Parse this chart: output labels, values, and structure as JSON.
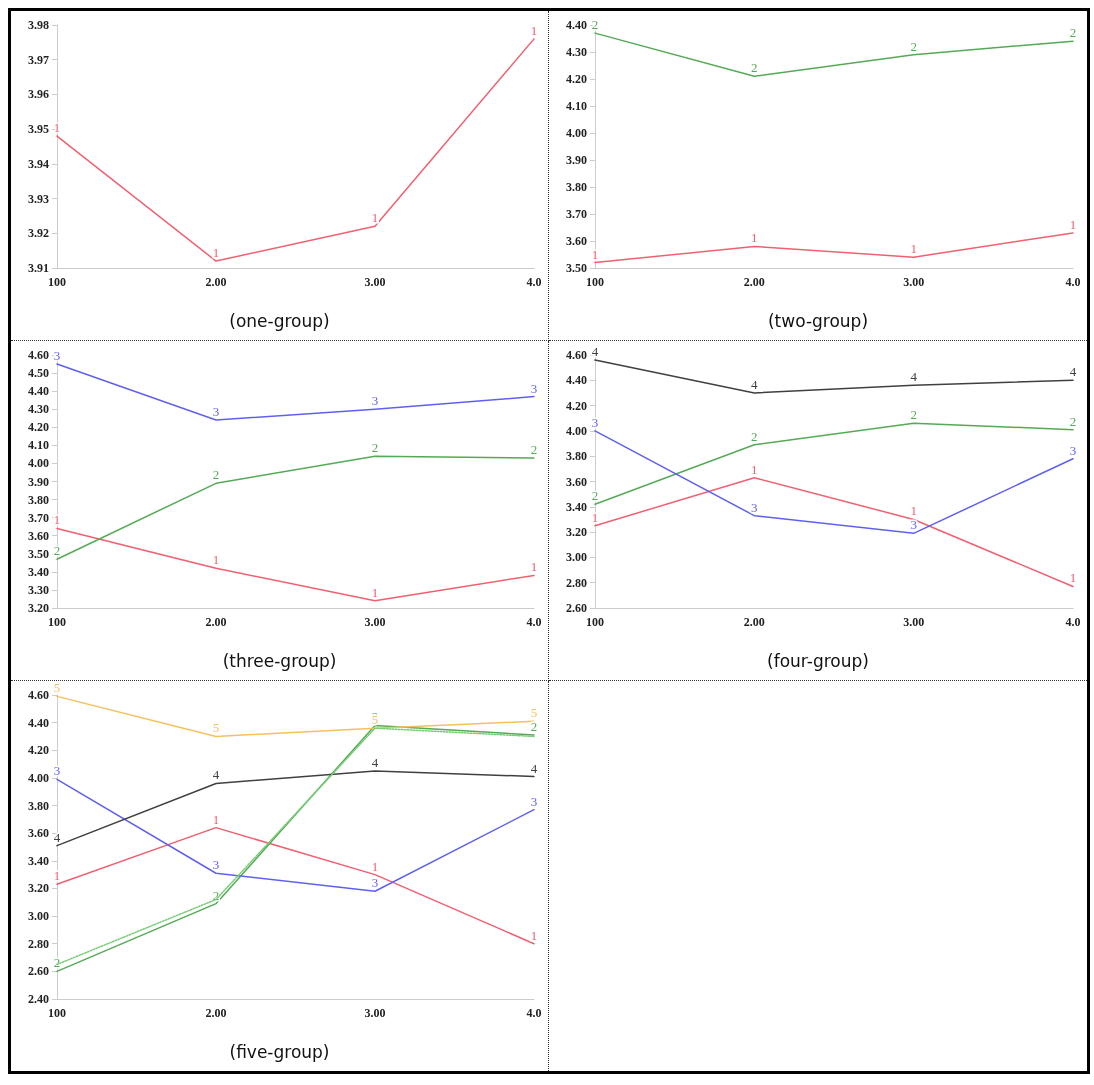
{
  "chart_data": [
    {
      "type": "line",
      "title": "(one-group)",
      "categories": [
        "100",
        "2.00",
        "3.00",
        "4.0"
      ],
      "ylim": [
        3.91,
        3.98
      ],
      "yticks": [
        3.91,
        3.92,
        3.93,
        3.94,
        3.95,
        3.96,
        3.97,
        3.98
      ],
      "series": [
        {
          "name": "1",
          "color": "#f06070",
          "values": [
            3.948,
            3.912,
            3.922,
            3.976
          ]
        }
      ]
    },
    {
      "type": "line",
      "title": "(two-group)",
      "categories": [
        "100",
        "2.00",
        "3.00",
        "4.0"
      ],
      "ylim": [
        3.5,
        4.4
      ],
      "yticks": [
        {
          "value": 3.5,
          "label": "3.50"
        },
        {
          "value": 3.6,
          "label": "3.60"
        },
        {
          "value": 3.7,
          "label": "3.70"
        },
        {
          "value": 3.8,
          "label": "3.80"
        },
        {
          "value": 3.9,
          "label": "3.90"
        },
        {
          "value": 4,
          "label": "4.00"
        },
        {
          "value": 4.1,
          "label": "4.10"
        },
        {
          "value": 4.2,
          "label": "4.20"
        },
        {
          "value": 4.3,
          "label": "4.30"
        },
        {
          "value": 4.4,
          "label": "4.40"
        }
      ],
      "series": [
        {
          "name": "1",
          "color": "#f06070",
          "values": [
            3.52,
            3.58,
            3.54,
            3.63
          ]
        },
        {
          "name": "2",
          "color": "#55aa55",
          "values": [
            4.37,
            4.21,
            4.29,
            4.34
          ]
        }
      ]
    },
    {
      "type": "line",
      "title": "(three-group)",
      "categories": [
        "100",
        "2.00",
        "3.00",
        "4.0"
      ],
      "ylim": [
        3.2,
        4.6
      ],
      "yticks": [
        {
          "value": 3.2,
          "label": "3.20"
        },
        {
          "value": 3.3,
          "label": "3.30"
        },
        {
          "value": 3.4,
          "label": "3.40"
        },
        {
          "value": 3.5,
          "label": "3.50"
        },
        {
          "value": 3.6,
          "label": "3.60"
        },
        {
          "value": 3.7,
          "label": "3.70"
        },
        {
          "value": 3.8,
          "label": "3.80"
        },
        {
          "value": 3.9,
          "label": "3.90"
        },
        {
          "value": 4,
          "label": "4.00"
        },
        {
          "value": 4.1,
          "label": "4.10"
        },
        {
          "value": 4.2,
          "label": "4.20"
        },
        {
          "value": 4.3,
          "label": "4.30"
        },
        {
          "value": 4.4,
          "label": "4.40"
        },
        {
          "value": 4.5,
          "label": "4.50"
        },
        {
          "value": 4.6,
          "label": "4.60"
        }
      ],
      "series": [
        {
          "name": "1",
          "color": "#f06070",
          "values": [
            3.64,
            3.42,
            3.24,
            3.38
          ]
        },
        {
          "name": "2",
          "color": "#55aa55",
          "values": [
            3.47,
            3.89,
            4.04,
            4.03
          ]
        },
        {
          "name": "3",
          "color": "#6060f0",
          "values": [
            4.55,
            4.24,
            4.3,
            4.37
          ]
        }
      ]
    },
    {
      "type": "line",
      "title": "(four-group)",
      "categories": [
        "100",
        "2.00",
        "3.00",
        "4.0"
      ],
      "ylim": [
        2.6,
        4.6
      ],
      "yticks": [
        {
          "value": 2.6,
          "label": "2.60"
        },
        {
          "value": 2.8,
          "label": "2.80"
        },
        {
          "value": 3,
          "label": "3.00"
        },
        {
          "value": 3.2,
          "label": "3.20"
        },
        {
          "value": 3.4,
          "label": "3.40"
        },
        {
          "value": 3.6,
          "label": "3.60"
        },
        {
          "value": 3.8,
          "label": "3.80"
        },
        {
          "value": 4,
          "label": "4.00"
        },
        {
          "value": 4.2,
          "label": "4.20"
        },
        {
          "value": 4.4,
          "label": "4.40"
        },
        {
          "value": 4.6,
          "label": "4.60"
        }
      ],
      "series": [
        {
          "name": "1",
          "color": "#f06070",
          "values": [
            3.25,
            3.63,
            3.3,
            2.77
          ]
        },
        {
          "name": "2",
          "color": "#55aa55",
          "values": [
            3.42,
            3.89,
            4.06,
            4.01
          ]
        },
        {
          "name": "3",
          "color": "#6060f0",
          "values": [
            4.0,
            3.33,
            3.19,
            3.78
          ]
        },
        {
          "name": "4",
          "color": "#404040",
          "values": [
            4.56,
            4.3,
            4.36,
            4.4
          ]
        }
      ]
    },
    {
      "type": "line",
      "title": "(five-group)",
      "categories": [
        "100",
        "2.00",
        "3.00",
        "4.0"
      ],
      "ylim": [
        2.4,
        4.6
      ],
      "yticks": [
        {
          "value": 2.4,
          "label": "2.40"
        },
        {
          "value": 2.6,
          "label": "2.60"
        },
        {
          "value": 2.8,
          "label": "2.80"
        },
        {
          "value": 3,
          "label": "3.00"
        },
        {
          "value": 3.2,
          "label": "3.20"
        },
        {
          "value": 3.4,
          "label": "3.40"
        },
        {
          "value": 3.6,
          "label": "3.60"
        },
        {
          "value": 3.8,
          "label": "3.80"
        },
        {
          "value": 4,
          "label": "4.00"
        },
        {
          "value": 4.2,
          "label": "4.20"
        },
        {
          "value": 4.4,
          "label": "4.40"
        },
        {
          "value": 4.6,
          "label": "4.60"
        }
      ],
      "series": [
        {
          "name": "1",
          "color": "#f06070",
          "values": [
            3.23,
            3.64,
            3.3,
            2.8
          ]
        },
        {
          "name": "2",
          "color": "#55aa55",
          "values": [
            2.6,
            3.09,
            4.38,
            4.31
          ]
        },
        {
          "color": "#77cc77",
          "line_style": "dotted",
          "values": [
            2.65,
            3.12,
            4.36,
            4.3
          ]
        },
        {
          "name": "3",
          "color": "#6060f0",
          "values": [
            3.99,
            3.31,
            3.18,
            3.77
          ]
        },
        {
          "name": "4",
          "color": "#404040",
          "values": [
            3.51,
            3.96,
            4.05,
            4.01
          ]
        },
        {
          "name": "5",
          "color": "#f5c060",
          "values": [
            4.59,
            4.3,
            4.36,
            4.41
          ]
        }
      ]
    }
  ]
}
